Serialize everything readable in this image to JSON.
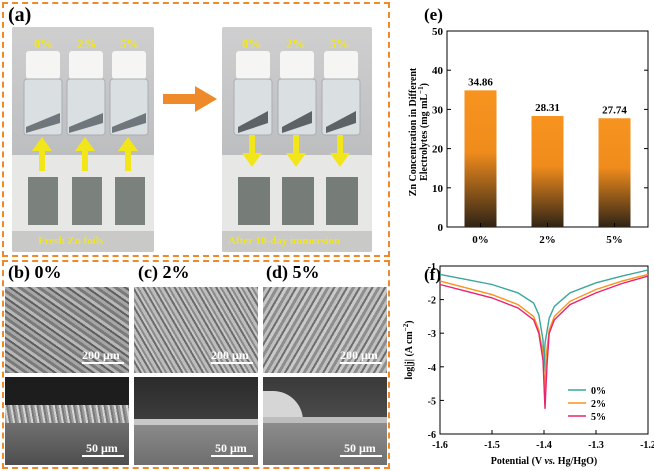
{
  "panel_a": {
    "label": "(a)",
    "bottle_labels_left": [
      "0%",
      "2%",
      "5%"
    ],
    "bottle_labels_right": [
      "0%",
      "2%",
      "5%"
    ],
    "caption_left": "Fresh Zn foils",
    "caption_right": "After 10-day immersion"
  },
  "panel_b": {
    "label": "(b) 0%",
    "scale_top": "200 μm",
    "scale_bottom": "50 μm"
  },
  "panel_c": {
    "label": "(c) 2%",
    "scale_top": "200 μm",
    "scale_bottom": "50 μm"
  },
  "panel_d": {
    "label": "(d) 5%",
    "scale_top": "200 μm",
    "scale_bottom": "50 μm"
  },
  "panel_e": {
    "label": "(e)"
  },
  "panel_f": {
    "label": "(f)"
  },
  "colors": {
    "accent": "#ef8a2a",
    "bar_top": "#f7931e",
    "bar_bottom": "#3a2a1a",
    "yellow": "#f2e61a",
    "line_0": "#3aa79a",
    "line_2": "#f7931e",
    "line_5": "#e8246f"
  },
  "chart_data": [
    {
      "type": "bar",
      "categories": [
        "0%",
        "2%",
        "5%"
      ],
      "values": [
        34.86,
        28.31,
        27.74
      ],
      "data_labels": [
        "34.86",
        "28.31",
        "27.74"
      ],
      "ylabel_line1": "Zn Concentration in Different",
      "ylabel_line2": "Electrolytes (mg mL",
      "ylabel_sup": "−1",
      "ylabel_end": ")",
      "ylim": [
        0,
        50
      ],
      "yticks": [
        "0",
        "10",
        "20",
        "30",
        "40",
        "50"
      ],
      "xlabel": ""
    },
    {
      "type": "line",
      "xlabel_pre": "Potential (V ",
      "xlabel_vs": "vs.",
      "xlabel_post": " Hg/HgO)",
      "ylabel_pre": "log|j| (A cm",
      "ylabel_sup": "−2",
      "ylabel_end": ")",
      "xlim": [
        -1.6,
        -1.2
      ],
      "ylim": [
        -6,
        -1
      ],
      "xticks": [
        "-1.6",
        "-1.5",
        "-1.4",
        "-1.3",
        "-1.2"
      ],
      "yticks": [
        "-1",
        "-2",
        "-3",
        "-4",
        "-5",
        "-6"
      ],
      "legend": "bottom-right",
      "series": [
        {
          "name": "0%",
          "x": [
            -1.6,
            -1.55,
            -1.5,
            -1.45,
            -1.42,
            -1.41,
            -1.402,
            -1.4,
            -1.398,
            -1.39,
            -1.38,
            -1.35,
            -1.3,
            -1.25,
            -1.2
          ],
          "y": [
            -1.25,
            -1.4,
            -1.55,
            -1.8,
            -2.1,
            -2.45,
            -3.2,
            -4.15,
            -3.3,
            -2.55,
            -2.2,
            -1.8,
            -1.5,
            -1.3,
            -1.12
          ]
        },
        {
          "name": "2%",
          "x": [
            -1.6,
            -1.55,
            -1.5,
            -1.45,
            -1.42,
            -1.41,
            -1.402,
            -1.399,
            -1.396,
            -1.39,
            -1.38,
            -1.35,
            -1.3,
            -1.25,
            -1.2
          ],
          "y": [
            -1.45,
            -1.65,
            -1.85,
            -2.15,
            -2.5,
            -2.9,
            -3.6,
            -4.8,
            -3.7,
            -2.9,
            -2.5,
            -2.05,
            -1.7,
            -1.45,
            -1.25
          ]
        },
        {
          "name": "5%",
          "x": [
            -1.6,
            -1.55,
            -1.5,
            -1.45,
            -1.42,
            -1.41,
            -1.402,
            -1.398,
            -1.394,
            -1.39,
            -1.38,
            -1.35,
            -1.3,
            -1.25,
            -1.2
          ],
          "y": [
            -1.55,
            -1.75,
            -1.95,
            -2.25,
            -2.6,
            -3.0,
            -3.8,
            -5.25,
            -3.9,
            -3.0,
            -2.6,
            -2.15,
            -1.8,
            -1.52,
            -1.3
          ]
        }
      ]
    }
  ]
}
